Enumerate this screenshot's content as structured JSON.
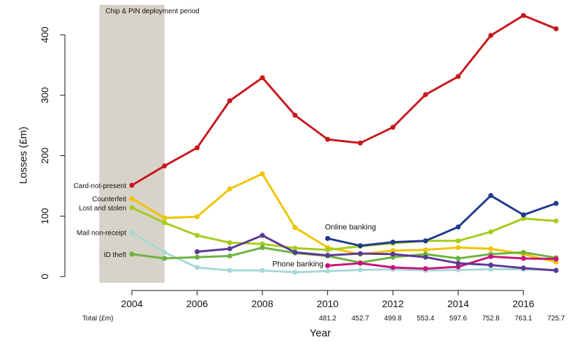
{
  "chart_data": {
    "type": "line",
    "xlabel": "Year",
    "ylabel": "Losses (£m)",
    "xlim": [
      2002.8,
      2017.4
    ],
    "ylim": [
      0,
      430
    ],
    "yticks": [
      0,
      100,
      200,
      300,
      400
    ],
    "xticks": [
      2004,
      2006,
      2008,
      2010,
      2012,
      2014,
      2016
    ],
    "shaded_region": {
      "label": "Chip & PIN deployment period",
      "x_start": 2003.0,
      "x_end": 2005.0,
      "color": "#d8d3c8"
    },
    "series": [
      {
        "name": "Card-not-present",
        "color": "#c8171c",
        "points": [
          [
            2004,
            151
          ],
          [
            2005,
            183
          ],
          [
            2006,
            213
          ],
          [
            2007,
            291
          ],
          [
            2008,
            329
          ],
          [
            2009,
            267
          ],
          [
            2010,
            227
          ],
          [
            2011,
            221
          ],
          [
            2012,
            247
          ],
          [
            2013,
            301
          ],
          [
            2014,
            331
          ],
          [
            2015,
            399
          ],
          [
            2016,
            432
          ],
          [
            2017,
            410
          ]
        ]
      },
      {
        "name": "Counterfeit",
        "color": "#f0c400",
        "points": [
          [
            2004,
            129
          ],
          [
            2005,
            97
          ],
          [
            2006,
            99
          ],
          [
            2007,
            145
          ],
          [
            2008,
            170
          ],
          [
            2009,
            81
          ],
          [
            2010,
            48
          ],
          [
            2011,
            37
          ],
          [
            2012,
            43
          ],
          [
            2013,
            44
          ],
          [
            2014,
            48
          ],
          [
            2015,
            46
          ],
          [
            2016,
            37
          ],
          [
            2017,
            24
          ]
        ]
      },
      {
        "name": "Lost and stolen",
        "color": "#a6cc1c",
        "points": [
          [
            2004,
            114
          ],
          [
            2005,
            89
          ],
          [
            2006,
            68
          ],
          [
            2007,
            56
          ],
          [
            2008,
            54
          ],
          [
            2009,
            47
          ],
          [
            2010,
            44
          ],
          [
            2011,
            50
          ],
          [
            2012,
            55
          ],
          [
            2013,
            59
          ],
          [
            2014,
            59
          ],
          [
            2015,
            74
          ],
          [
            2016,
            96
          ],
          [
            2017,
            92
          ]
        ]
      },
      {
        "name": "Mail non-receipt",
        "color": "#a8d8d6",
        "points": [
          [
            2004,
            73
          ],
          [
            2005,
            40
          ],
          [
            2006,
            15
          ],
          [
            2007,
            10
          ],
          [
            2008,
            10
          ],
          [
            2009,
            7
          ],
          [
            2010,
            9
          ],
          [
            2011,
            11
          ],
          [
            2012,
            12
          ],
          [
            2013,
            10
          ],
          [
            2014,
            11
          ],
          [
            2015,
            12
          ],
          [
            2016,
            12
          ],
          [
            2017,
            11
          ]
        ]
      },
      {
        "name": "ID theft",
        "color": "#6cb33f",
        "points": [
          [
            2004,
            37
          ],
          [
            2005,
            30
          ],
          [
            2006,
            32
          ],
          [
            2007,
            34
          ],
          [
            2008,
            48
          ],
          [
            2009,
            39
          ],
          [
            2010,
            34
          ],
          [
            2011,
            23
          ],
          [
            2012,
            32
          ],
          [
            2013,
            37
          ],
          [
            2014,
            30
          ],
          [
            2015,
            37
          ],
          [
            2016,
            40
          ],
          [
            2017,
            31
          ]
        ]
      },
      {
        "name": "Online banking",
        "color": "#1f3a8c",
        "points": [
          [
            2010,
            63
          ],
          [
            2011,
            51
          ],
          [
            2012,
            57
          ],
          [
            2013,
            59
          ],
          [
            2014,
            82
          ],
          [
            2015,
            134
          ],
          [
            2016,
            102
          ],
          [
            2017,
            121
          ]
        ]
      },
      {
        "name": "Phone banking",
        "color": "#c8157a",
        "points": [
          [
            2010,
            18
          ],
          [
            2011,
            22
          ],
          [
            2012,
            15
          ],
          [
            2013,
            13
          ],
          [
            2014,
            16
          ],
          [
            2015,
            33
          ],
          [
            2016,
            30
          ],
          [
            2017,
            29
          ]
        ]
      },
      {
        "name": "",
        "color": "#5b3a94",
        "points": [
          [
            2006,
            41
          ],
          [
            2007,
            46
          ],
          [
            2008,
            68
          ],
          [
            2009,
            40
          ],
          [
            2010,
            35
          ],
          [
            2011,
            38
          ],
          [
            2012,
            37
          ],
          [
            2013,
            32
          ],
          [
            2014,
            22
          ],
          [
            2015,
            19
          ],
          [
            2016,
            14
          ],
          [
            2017,
            10
          ]
        ]
      }
    ],
    "inline_labels": [
      {
        "series": "Card-not-present",
        "text": "Card-not-present",
        "side": "left"
      },
      {
        "series": "Counterfeit",
        "text": "Counterfeit",
        "side": "left"
      },
      {
        "series": "Lost and stolen",
        "text": "Lost and stolen",
        "side": "left"
      },
      {
        "series": "Mail non-receipt",
        "text": "Mail non-receipt",
        "side": "left"
      },
      {
        "series": "ID theft",
        "text": "ID theft",
        "side": "left"
      },
      {
        "series": "Online banking",
        "text": "Online banking",
        "side": "above"
      },
      {
        "series": "Phone banking",
        "text": "Phone banking",
        "side": "before"
      }
    ],
    "totals": {
      "label": "Total (£m)",
      "entries": [
        {
          "year": 2010,
          "value": "481.2"
        },
        {
          "year": 2011,
          "value": "452.7"
        },
        {
          "year": 2012,
          "value": "499.8"
        },
        {
          "year": 2013,
          "value": "553.4"
        },
        {
          "year": 2014,
          "value": "597.6"
        },
        {
          "year": 2015,
          "value": "752.8"
        },
        {
          "year": 2016,
          "value": "763.1"
        },
        {
          "year": 2017,
          "value": "725.7"
        }
      ]
    }
  }
}
